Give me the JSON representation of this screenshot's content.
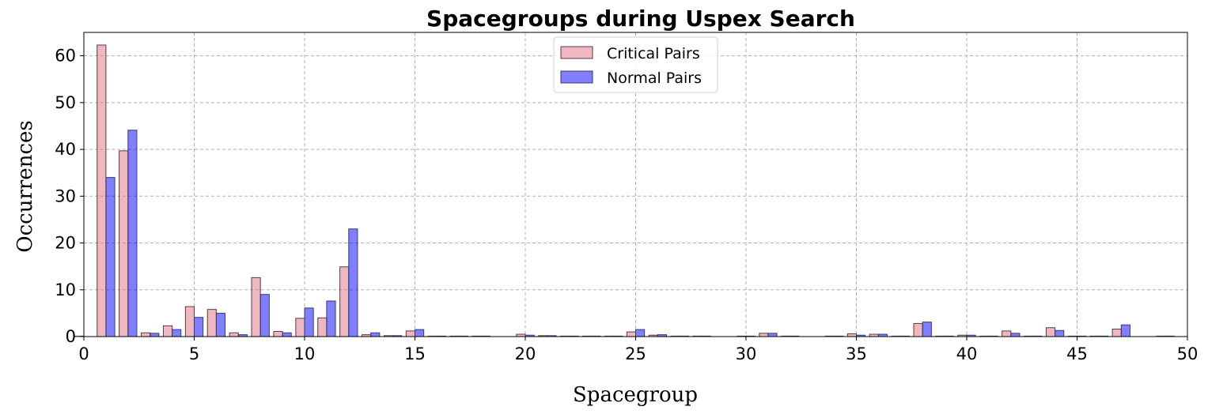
{
  "chart_data": {
    "type": "bar",
    "title": "Spacegroups during Uspex Search",
    "xlabel": "Spacegroup",
    "ylabel": "Occurrences",
    "xlim": [
      0,
      50
    ],
    "ylim": [
      0,
      65
    ],
    "xticks": [
      0,
      5,
      10,
      15,
      20,
      25,
      30,
      35,
      40,
      45,
      50
    ],
    "yticks": [
      0,
      10,
      20,
      30,
      40,
      50,
      60
    ],
    "grid": true,
    "legend_position": "top-center",
    "x": [
      0,
      1,
      2,
      3,
      4,
      5,
      6,
      7,
      8,
      9,
      10,
      11,
      12,
      13,
      14,
      15,
      16,
      17,
      18,
      19,
      20,
      21,
      22,
      23,
      24,
      25,
      26,
      27,
      28,
      29,
      30,
      31,
      32,
      33,
      34,
      35,
      36,
      37,
      38,
      39,
      40,
      41,
      42,
      43,
      44,
      45,
      46,
      47,
      48,
      49
    ],
    "series": [
      {
        "name": "Critical Pairs",
        "color": "#e07080",
        "values": [
          0.1,
          62.3,
          39.7,
          0.8,
          2.3,
          6.4,
          5.8,
          0.8,
          12.6,
          1.1,
          3.9,
          4.0,
          14.9,
          0.4,
          0.2,
          1.2,
          0.1,
          0.1,
          0.1,
          0,
          0.5,
          0.2,
          0.1,
          0.1,
          0.1,
          1.0,
          0.3,
          0.1,
          0.1,
          0,
          0.1,
          0.7,
          0.1,
          0,
          0.1,
          0.6,
          0.5,
          0.1,
          2.8,
          0.1,
          0.3,
          0.1,
          1.2,
          0.1,
          1.9,
          0.1,
          0.1,
          1.6,
          0,
          0.1
        ]
      },
      {
        "name": "Normal Pairs",
        "color": "#0000ff",
        "values": [
          0,
          34.0,
          44.1,
          0.7,
          1.5,
          4.1,
          5.0,
          0.4,
          9.0,
          0.8,
          6.1,
          7.6,
          23.0,
          0.8,
          0.2,
          1.5,
          0.1,
          0.1,
          0.1,
          0,
          0.3,
          0.2,
          0.1,
          0.1,
          0.1,
          1.5,
          0.4,
          0.1,
          0.1,
          0,
          0.1,
          0.7,
          0.1,
          0,
          0.1,
          0.3,
          0.5,
          0.1,
          3.1,
          0.1,
          0.3,
          0.1,
          0.7,
          0.1,
          1.3,
          0.1,
          0.1,
          2.5,
          0,
          0.1
        ]
      }
    ]
  }
}
